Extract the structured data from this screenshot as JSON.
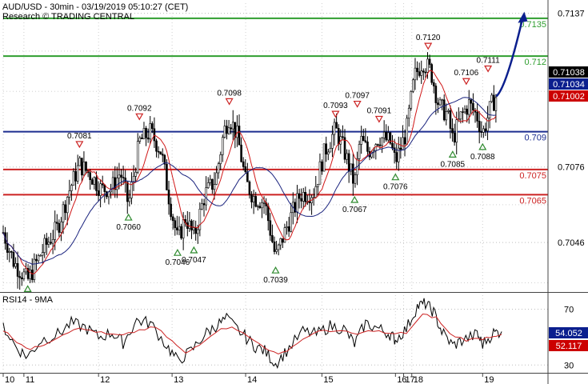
{
  "header": {
    "line1": "AUD/USD - 30min - 03/19/2019 05:10:27 (CET)",
    "line2": "Research © TRADING CENTRAL"
  },
  "chart_data": [
    {
      "type": "candlestick",
      "title": "AUD/USD - 30min - 03/19/2019 05:10:27 (CET)",
      "ylim": [
        0.7027,
        0.7141
      ],
      "grid": true,
      "y_ticks": [
        {
          "value": 0.7137,
          "label": "0.7137"
        },
        {
          "value": 0.7076,
          "label": "0.7076"
        },
        {
          "value": 0.7046,
          "label": "0.7046"
        }
      ],
      "x_ticks": [
        "10",
        "11",
        "12",
        "13",
        "14",
        "15",
        "16",
        "17",
        "18",
        "19"
      ],
      "price_badges": [
        {
          "value": 0.71038,
          "label": "0.71038",
          "color": "#000000"
        },
        {
          "value": 0.71034,
          "label": "0.71034",
          "color": "#0b1f8e"
        },
        {
          "value": 0.71002,
          "label": "0.71002",
          "color": "#cc0000"
        }
      ],
      "horizontal_levels": [
        {
          "value": 0.7135,
          "label": "0.7135",
          "color": "#2f9e2f"
        },
        {
          "value": 0.712,
          "label": "0.712",
          "color": "#2f9e2f"
        },
        {
          "value": 0.709,
          "label": "0.709",
          "color": "#1c2d8f"
        },
        {
          "value": 0.7075,
          "label": "0.7075",
          "color": "#cc2222"
        },
        {
          "value": 0.7065,
          "label": "0.7065",
          "color": "#cc2222"
        }
      ],
      "annotations": [
        {
          "label": "0.7081",
          "value": 0.7081,
          "x": 0.14,
          "kind": "high"
        },
        {
          "label": "0.7092",
          "value": 0.7092,
          "x": 0.25,
          "kind": "high"
        },
        {
          "label": "0.7098",
          "value": 0.7098,
          "x": 0.415,
          "kind": "high"
        },
        {
          "label": "0.7093",
          "value": 0.7093,
          "x": 0.61,
          "kind": "high"
        },
        {
          "label": "0.7097",
          "value": 0.7097,
          "x": 0.65,
          "kind": "high"
        },
        {
          "label": "0.7091",
          "value": 0.7091,
          "x": 0.69,
          "kind": "high"
        },
        {
          "label": "0.7120",
          "value": 0.712,
          "x": 0.78,
          "kind": "high"
        },
        {
          "label": "0.7106",
          "value": 0.7106,
          "x": 0.85,
          "kind": "high"
        },
        {
          "label": "0.7111",
          "value": 0.7111,
          "x": 0.89,
          "kind": "high"
        },
        {
          "label": "0.7060",
          "value": 0.706,
          "x": 0.23,
          "kind": "low"
        },
        {
          "label": "0.7046",
          "value": 0.7046,
          "x": 0.32,
          "kind": "low"
        },
        {
          "label": "0.7047",
          "value": 0.7047,
          "x": 0.35,
          "kind": "low"
        },
        {
          "label": "0.7039",
          "value": 0.7039,
          "x": 0.5,
          "kind": "low"
        },
        {
          "label": "0.7067",
          "value": 0.7067,
          "x": 0.645,
          "kind": "low"
        },
        {
          "label": "0.7076",
          "value": 0.7076,
          "x": 0.72,
          "kind": "low"
        },
        {
          "label": "0.7085",
          "value": 0.7085,
          "x": 0.825,
          "kind": "low"
        },
        {
          "label": "0.7088",
          "value": 0.7088,
          "x": 0.88,
          "kind": "low"
        }
      ],
      "unlabeled_low_markers": [
        0.7031
      ],
      "price_path": [
        [
          0.0,
          0.705
        ],
        [
          0.02,
          0.7038
        ],
        [
          0.045,
          0.7031
        ],
        [
          0.07,
          0.7042
        ],
        [
          0.1,
          0.7052
        ],
        [
          0.12,
          0.7066
        ],
        [
          0.14,
          0.7077
        ],
        [
          0.16,
          0.7073
        ],
        [
          0.18,
          0.7067
        ],
        [
          0.2,
          0.7068
        ],
        [
          0.215,
          0.7074
        ],
        [
          0.23,
          0.7061
        ],
        [
          0.25,
          0.7086
        ],
        [
          0.27,
          0.709
        ],
        [
          0.29,
          0.7082
        ],
        [
          0.305,
          0.7063
        ],
        [
          0.32,
          0.7047
        ],
        [
          0.335,
          0.7056
        ],
        [
          0.35,
          0.7048
        ],
        [
          0.37,
          0.7065
        ],
        [
          0.39,
          0.7071
        ],
        [
          0.405,
          0.709
        ],
        [
          0.415,
          0.7096
        ],
        [
          0.43,
          0.7088
        ],
        [
          0.445,
          0.707
        ],
        [
          0.46,
          0.7064
        ],
        [
          0.48,
          0.7062
        ],
        [
          0.5,
          0.704
        ],
        [
          0.52,
          0.7052
        ],
        [
          0.545,
          0.7065
        ],
        [
          0.57,
          0.7066
        ],
        [
          0.59,
          0.7082
        ],
        [
          0.61,
          0.7091
        ],
        [
          0.625,
          0.7083
        ],
        [
          0.645,
          0.7069
        ],
        [
          0.655,
          0.7087
        ],
        [
          0.67,
          0.7082
        ],
        [
          0.69,
          0.7088
        ],
        [
          0.71,
          0.7086
        ],
        [
          0.72,
          0.7078
        ],
        [
          0.74,
          0.709
        ],
        [
          0.755,
          0.7112
        ],
        [
          0.77,
          0.7118
        ],
        [
          0.785,
          0.7114
        ],
        [
          0.8,
          0.71
        ],
        [
          0.815,
          0.7097
        ],
        [
          0.825,
          0.7087
        ],
        [
          0.84,
          0.7096
        ],
        [
          0.855,
          0.7101
        ],
        [
          0.87,
          0.7096
        ],
        [
          0.88,
          0.7089
        ],
        [
          0.895,
          0.71
        ],
        [
          0.905,
          0.7104
        ]
      ],
      "forecast_arrow": {
        "from": [
          0.905,
          0.7104
        ],
        "to": [
          0.955,
          0.7137
        ],
        "color": "#0b1f8e"
      }
    },
    {
      "type": "line",
      "title": "RSI14 - 9MA",
      "ylim": [
        25,
        80
      ],
      "y_ticks": [
        70,
        30
      ],
      "current_values": [
        {
          "name": "RSI14",
          "label": "54.052",
          "color": "#0b1f8e"
        },
        {
          "name": "9MA",
          "label": "52.117",
          "color": "#cc0000"
        }
      ],
      "series": [
        {
          "name": "RSI14",
          "color": "#000000",
          "points": [
            [
              0.0,
              58
            ],
            [
              0.025,
              42
            ],
            [
              0.045,
              36
            ],
            [
              0.07,
              48
            ],
            [
              0.1,
              52
            ],
            [
              0.125,
              60
            ],
            [
              0.15,
              57
            ],
            [
              0.175,
              50
            ],
            [
              0.2,
              53
            ],
            [
              0.22,
              46
            ],
            [
              0.245,
              62
            ],
            [
              0.27,
              60
            ],
            [
              0.3,
              44
            ],
            [
              0.32,
              33
            ],
            [
              0.345,
              40
            ],
            [
              0.37,
              52
            ],
            [
              0.39,
              58
            ],
            [
              0.41,
              63
            ],
            [
              0.44,
              52
            ],
            [
              0.46,
              44
            ],
            [
              0.48,
              40
            ],
            [
              0.5,
              31
            ],
            [
              0.52,
              40
            ],
            [
              0.55,
              54
            ],
            [
              0.575,
              52
            ],
            [
              0.6,
              58
            ],
            [
              0.625,
              56
            ],
            [
              0.645,
              45
            ],
            [
              0.665,
              60
            ],
            [
              0.69,
              56
            ],
            [
              0.71,
              52
            ],
            [
              0.72,
              48
            ],
            [
              0.74,
              56
            ],
            [
              0.76,
              72
            ],
            [
              0.775,
              74
            ],
            [
              0.79,
              68
            ],
            [
              0.805,
              54
            ],
            [
              0.825,
              44
            ],
            [
              0.845,
              48
            ],
            [
              0.87,
              52
            ],
            [
              0.88,
              45
            ],
            [
              0.9,
              53
            ],
            [
              0.915,
              54
            ]
          ]
        },
        {
          "name": "9MA",
          "color": "#cc2222",
          "points": [
            [
              0.0,
              55
            ],
            [
              0.025,
              47
            ],
            [
              0.05,
              41
            ],
            [
              0.075,
              45
            ],
            [
              0.1,
              50
            ],
            [
              0.13,
              56
            ],
            [
              0.16,
              55
            ],
            [
              0.19,
              52
            ],
            [
              0.22,
              51
            ],
            [
              0.25,
              55
            ],
            [
              0.28,
              57
            ],
            [
              0.31,
              47
            ],
            [
              0.335,
              38
            ],
            [
              0.36,
              45
            ],
            [
              0.39,
              54
            ],
            [
              0.42,
              58
            ],
            [
              0.45,
              50
            ],
            [
              0.48,
              43
            ],
            [
              0.505,
              37
            ],
            [
              0.53,
              43
            ],
            [
              0.56,
              51
            ],
            [
              0.59,
              55
            ],
            [
              0.62,
              54
            ],
            [
              0.65,
              52
            ],
            [
              0.68,
              55
            ],
            [
              0.71,
              52
            ],
            [
              0.74,
              53
            ],
            [
              0.77,
              66
            ],
            [
              0.795,
              64
            ],
            [
              0.82,
              52
            ],
            [
              0.85,
              48
            ],
            [
              0.88,
              49
            ],
            [
              0.9,
              51
            ],
            [
              0.915,
              52
            ]
          ]
        }
      ]
    }
  ]
}
